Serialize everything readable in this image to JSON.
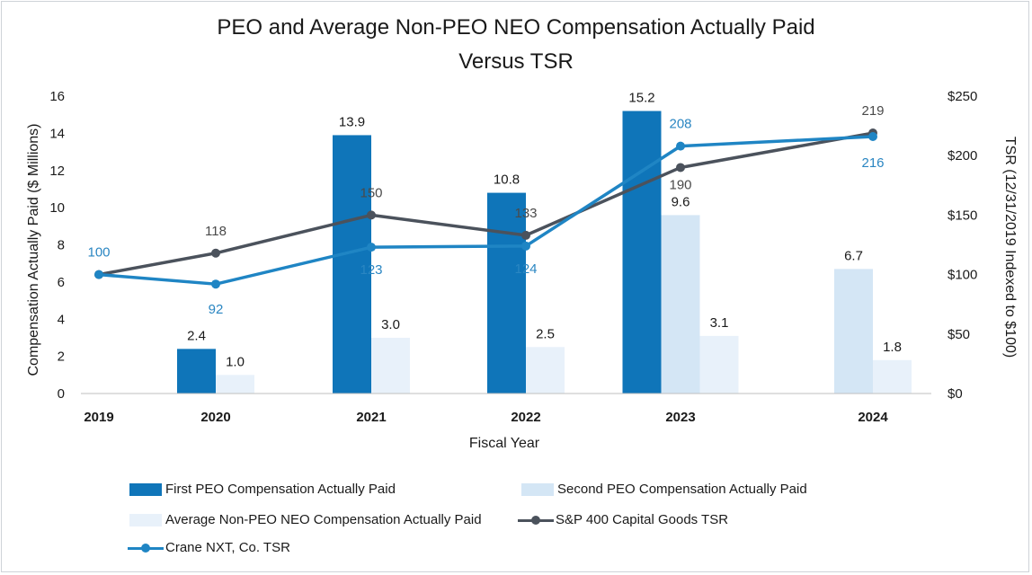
{
  "chart_data": {
    "type": "bar",
    "title_line1": "PEO and Average Non-PEO NEO Compensation Actually Paid",
    "title_line2": "Versus TSR",
    "xlabel": "Fiscal Year",
    "ylabel_left": "Compensation Actually Paid ($ Millions)",
    "ylabel_right": "TSR (12/31/2019 Indexed to $100)",
    "ylim_left": [
      0,
      16
    ],
    "ylim_right": [
      0,
      250
    ],
    "yticks_left": [
      "0",
      "2",
      "4",
      "6",
      "8",
      "10",
      "12",
      "14",
      "16"
    ],
    "yticks_right": [
      "$0",
      "$50",
      "$100",
      "$150",
      "$200",
      "$250"
    ],
    "categories": [
      "2019",
      "2020",
      "2021",
      "2022",
      "2023",
      "2024"
    ],
    "bar_series": [
      {
        "name": "First PEO Compensation Actually Paid",
        "color": "#0f75b9",
        "values": [
          null,
          2.4,
          13.9,
          10.8,
          15.2,
          null
        ],
        "labels": [
          "",
          "2.4",
          "13.9",
          "10.8",
          "15.2",
          ""
        ]
      },
      {
        "name": "Second PEO Compensation Actually Paid",
        "color": "#d4e6f5",
        "values": [
          null,
          null,
          null,
          null,
          9.6,
          6.7
        ],
        "labels": [
          "",
          "",
          "",
          "",
          "9.6",
          "6.7"
        ]
      },
      {
        "name": "Average Non-PEO NEO Compensation Actually Paid",
        "color": "#e8f1fa",
        "values": [
          null,
          1.0,
          3.0,
          2.5,
          3.1,
          1.8
        ],
        "labels": [
          "",
          "1.0",
          "3.0",
          "2.5",
          "3.1",
          "1.8"
        ]
      }
    ],
    "line_series": [
      {
        "name": "S&P 400 Capital Goods TSR",
        "color": "#4b525c",
        "values": [
          100,
          118,
          150,
          133,
          190,
          219
        ],
        "labels": [
          "",
          "118",
          "150",
          "133",
          "190",
          "219"
        ]
      },
      {
        "name": "Crane NXT, Co. TSR",
        "color": "#1f85c4",
        "values": [
          100,
          92,
          123,
          124,
          208,
          216
        ],
        "labels": [
          "100",
          "92",
          "123",
          "124",
          "208",
          "216"
        ]
      }
    ],
    "legend": [
      "First PEO Compensation Actually Paid",
      "Second PEO Compensation Actually Paid",
      "Average Non-PEO NEO Compensation Actually Paid",
      "S&P 400 Capital Goods TSR",
      "Crane NXT, Co. TSR"
    ],
    "legend_position": "bottom"
  }
}
